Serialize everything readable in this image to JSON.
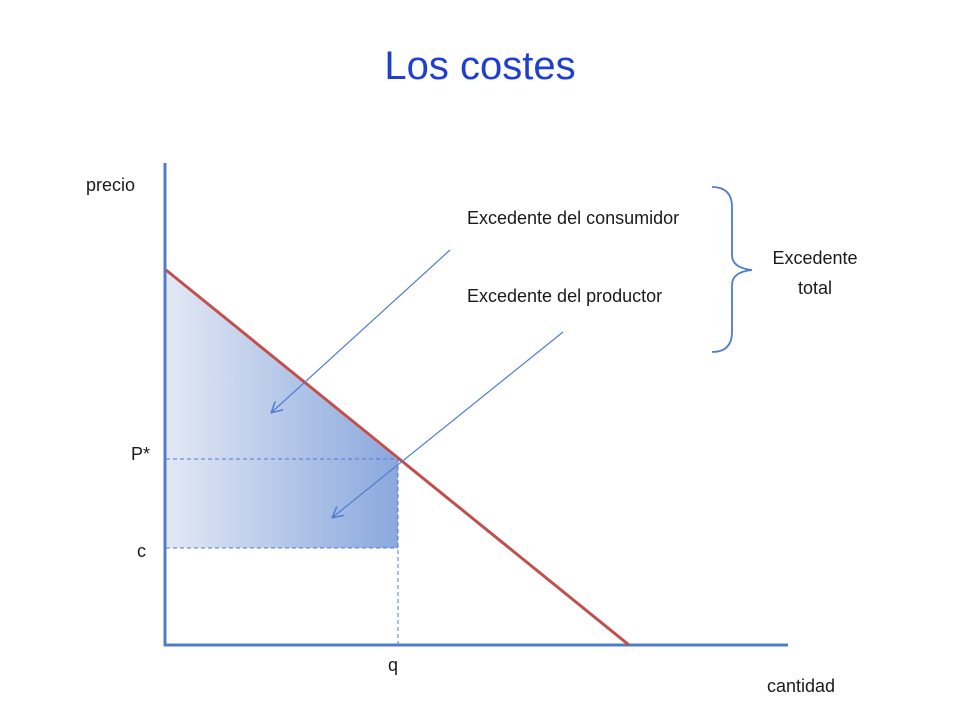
{
  "title": "Los costes",
  "axes": {
    "y_label": "precio",
    "x_label": "cantidad"
  },
  "labels": {
    "p_star": "P*",
    "c": "c",
    "q": "q",
    "consumer_surplus": "Excedente del consumidor",
    "producer_surplus": "Excedente del productor",
    "total_surplus_line1": "Excedente",
    "total_surplus_line2": "total"
  },
  "colors": {
    "axis": "#4f7ccf",
    "demand": "#c0504d",
    "guide": "#4f7ccf",
    "arrow": "#4f7ccf",
    "fill_light": "#e3e8f4",
    "fill_dark": "#8aa8de",
    "title": "#1f3fd0"
  }
}
